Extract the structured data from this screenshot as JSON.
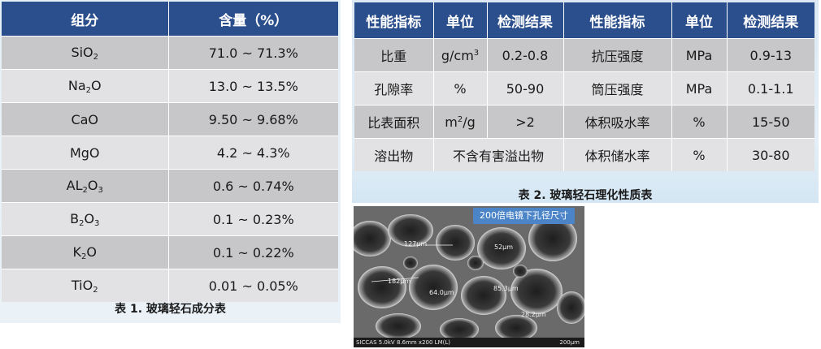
{
  "table1": {
    "headers": [
      "组分",
      "含量（%）"
    ],
    "rows": [
      {
        "base": "SiO",
        "subs": [
          "2"
        ],
        "value": "71.0 ~ 71.3%"
      },
      {
        "base": "Na",
        "subs": [
          "2"
        ],
        "tail": "O",
        "value": "13.0 ~ 13.5%"
      },
      {
        "base": "CaO",
        "subs": [],
        "value": "9.50 ~ 9.68%"
      },
      {
        "base": "MgO",
        "subs": [],
        "value": "4.2 ~ 4.3%"
      },
      {
        "base": "AL",
        "subs": [
          "2"
        ],
        "mid": "O",
        "subs2": [
          "3"
        ],
        "value": "0.6 ~ 0.74%"
      },
      {
        "base": "B",
        "subs": [
          "2"
        ],
        "mid": "O",
        "subs2": [
          "3"
        ],
        "value": "0.1 ~ 0.23%"
      },
      {
        "base": "K",
        "subs": [
          "2"
        ],
        "tail": "O",
        "value": "0.1 ~ 0.22%"
      },
      {
        "base": "TiO",
        "subs": [
          "2"
        ],
        "value": "0.01 ~ 0.05%"
      }
    ],
    "caption": "表 1.  玻璃轻石成分表"
  },
  "table2": {
    "headers": [
      "性能指标",
      "单位",
      "检测结果",
      "性能指标",
      "单位",
      "检测结果"
    ],
    "rows": [
      {
        "name1": "比重",
        "unit1_base": "g/cm",
        "unit1_sup": "3",
        "result1": "0.2-0.8",
        "name2": "抗压强度",
        "unit2": "MPa",
        "result2": "0.9-13"
      },
      {
        "name1": "孔隙率",
        "unit1_base": "%",
        "unit1_sup": "",
        "result1": "50-90",
        "name2": "筒压强度",
        "unit2": "MPa",
        "result2": "0.1-1.1"
      },
      {
        "name1": "比表面积",
        "unit1_base": "m",
        "unit1_sup": "2",
        "unit1_tail": "/g",
        "result1": ">2",
        "name2": "体积吸水率",
        "unit2": "%",
        "result2": "15-50"
      },
      {
        "name1": "溶出物",
        "merged": "不含有害溢出物",
        "name2": "体积储水率",
        "unit2": "%",
        "result2": "30-80"
      }
    ],
    "caption": "表 2.  玻璃轻石理化性质表"
  },
  "micrograph": {
    "tag": "200倍电镜下孔径尺寸",
    "labels": [
      "127μm",
      "52μm",
      "182μm",
      "64.0μm",
      "85.3μm",
      "28.2μm"
    ],
    "footer_left": "SICCAS 5.0kV 8.6mm x200 LM(L)",
    "footer_right": "200μm"
  }
}
